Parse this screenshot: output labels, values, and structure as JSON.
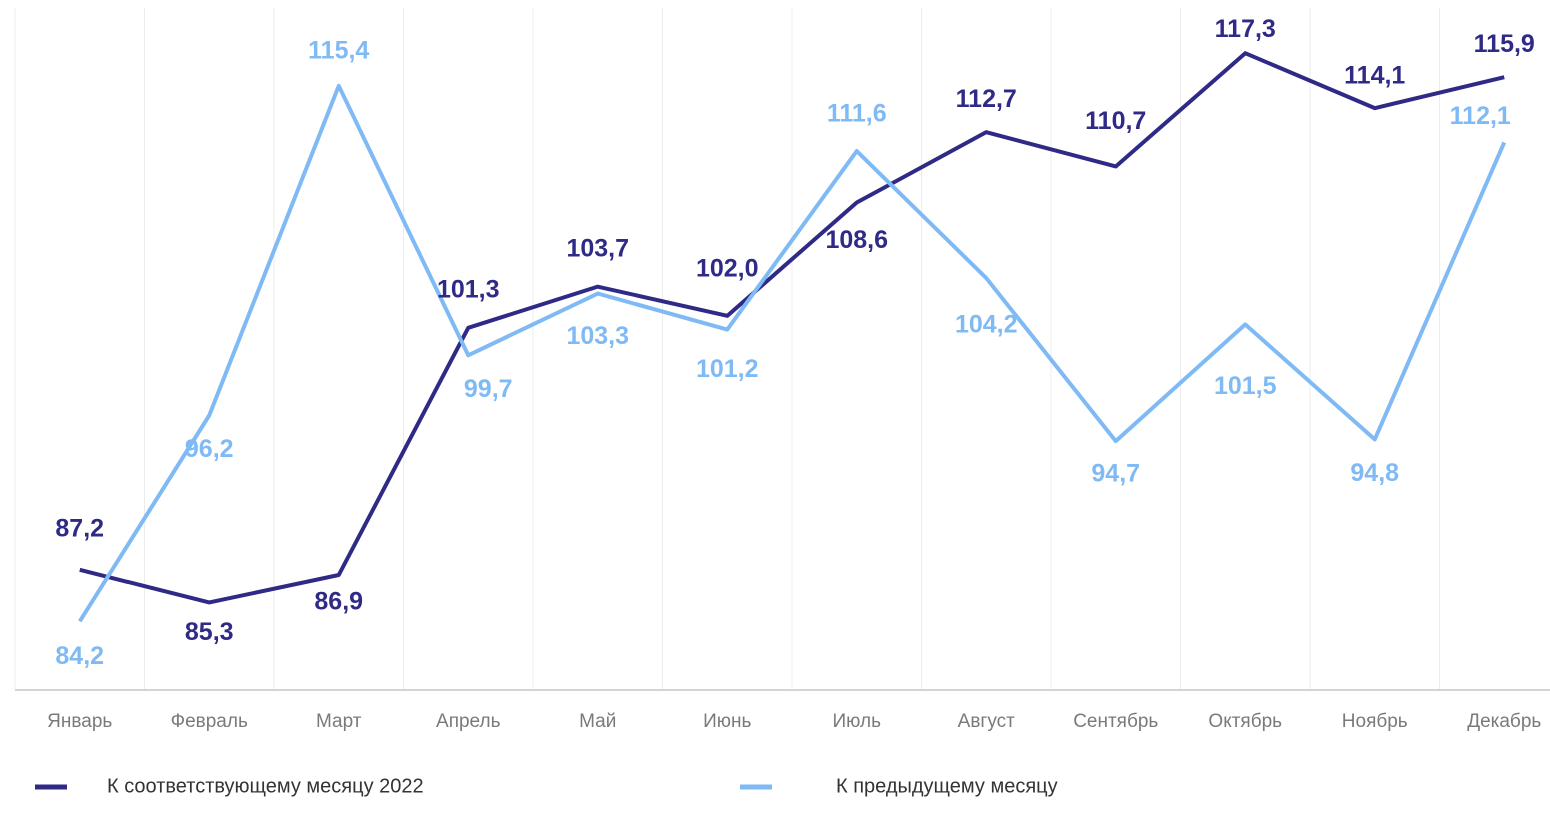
{
  "chart_data": {
    "type": "line",
    "categories": [
      "Январь",
      "Февраль",
      "Март",
      "Апрель",
      "Май",
      "Июнь",
      "Июль",
      "Август",
      "Сентябрь",
      "Октябрь",
      "Ноябрь",
      "Декабрь"
    ],
    "series": [
      {
        "name": "К соответствующему месяцу 2022",
        "color": "#2e2a86",
        "values": [
          87.2,
          85.3,
          86.9,
          101.3,
          103.7,
          102.0,
          108.6,
          112.7,
          110.7,
          117.3,
          114.1,
          115.9
        ],
        "value_labels": [
          "87,2",
          "85,3",
          "86,9",
          "101,3",
          "103,7",
          "102,0",
          "108,6",
          "112,7",
          "110,7",
          "117,3",
          "114,1",
          "115,9"
        ]
      },
      {
        "name": "К предыдущему месяцу",
        "color": "#7fbaf5",
        "values": [
          84.2,
          96.2,
          115.4,
          99.7,
          103.3,
          101.2,
          111.6,
          104.2,
          94.7,
          101.5,
          94.8,
          112.1
        ],
        "value_labels": [
          "84,2",
          "96,2",
          "115,4",
          "99,7",
          "103,3",
          "101,2",
          "111,6",
          "104,2",
          "94,7",
          "101,5",
          "94,8",
          "112,1"
        ]
      }
    ],
    "ylim": [
      80.2,
      120.4
    ]
  }
}
